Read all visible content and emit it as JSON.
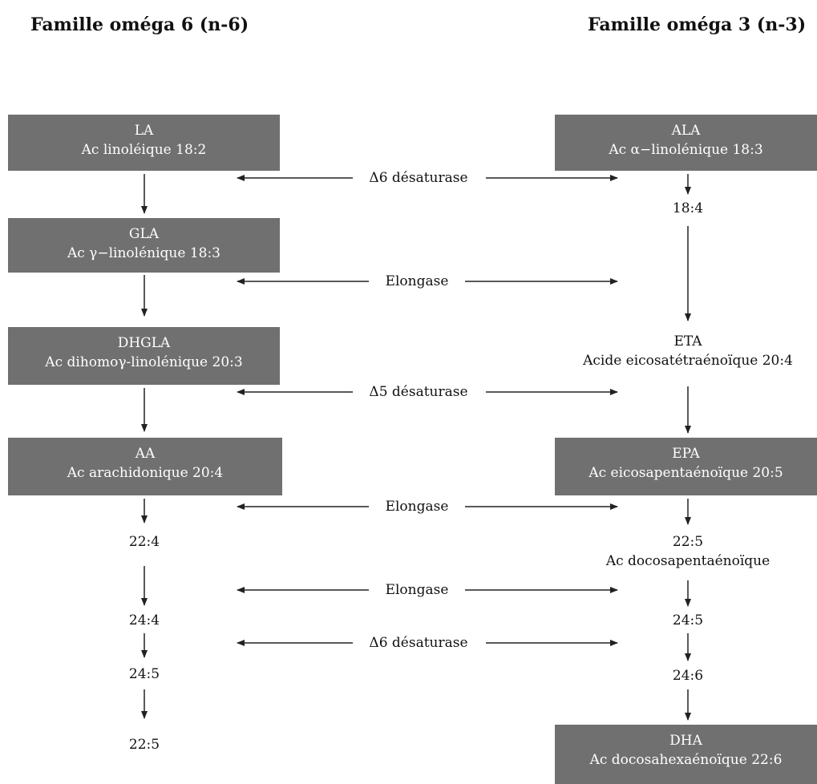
{
  "titles": {
    "omega6": "Famille oméga 6 (n-6)",
    "omega3": "Famille oméga 3 (n-3)"
  },
  "omega6": {
    "la": {
      "abbr": "LA",
      "name": "Ac linoléique 18:2"
    },
    "gla": {
      "abbr": "GLA",
      "name": "Ac γ−linolénique 18:3"
    },
    "dhgla": {
      "abbr": "DHGLA",
      "name": "Ac dihomoγ-linolénique 20:3"
    },
    "aa": {
      "abbr": "AA",
      "name": "Ac arachidonique 20:4"
    },
    "c22_4": "22:4",
    "c24_4": "24:4",
    "c24_5": "24:5",
    "c22_5": "22:5"
  },
  "omega3": {
    "ala": {
      "abbr": "ALA",
      "name": "Ac α−linolénique 18:3"
    },
    "c18_4": "18:4",
    "eta": {
      "abbr": "ETA",
      "name": "Acide eicosatétraénoïque 20:4"
    },
    "epa": {
      "abbr": "EPA",
      "name": "Ac eicosapentaénoïque 20:5"
    },
    "dpa": {
      "abbr": "22:5",
      "name": "Ac docosapentaénoïque"
    },
    "c24_5": "24:5",
    "c24_6": "24:6",
    "dha": {
      "abbr": "DHA",
      "name": "Ac docosahexaénoïque 22:6"
    }
  },
  "enzymes": {
    "d6_first": "Δ6 désaturase",
    "elongase_1": "Elongase",
    "d5": "Δ5 désaturase",
    "elongase_2": "Elongase",
    "elongase_3": "Elongase",
    "d6_second": "Δ6 désaturase"
  }
}
